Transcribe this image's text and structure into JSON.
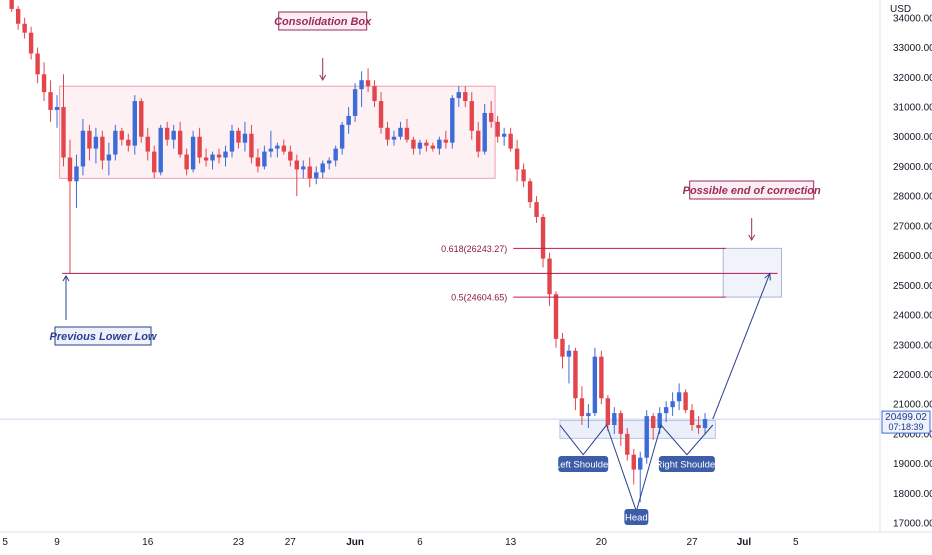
{
  "chart_data": {
    "type": "candlestick",
    "y_axis": {
      "unit": "USD",
      "ticks": [
        "34000.00",
        "33000.00",
        "32000.00",
        "31000.00",
        "30000.00",
        "29000.00",
        "28000.00",
        "27000.00",
        "26000.00",
        "25000.00",
        "24000.00",
        "23000.00",
        "22000.00",
        "21000.00",
        "20000.00",
        "19000.00",
        "18000.00",
        "17000.00"
      ],
      "ylim": [
        16700,
        34600
      ]
    },
    "x_axis": {
      "ticks": [
        {
          "label": "5",
          "day": 5
        },
        {
          "label": "9",
          "day": 9
        },
        {
          "label": "16",
          "day": 16
        },
        {
          "label": "23",
          "day": 23
        },
        {
          "label": "27",
          "day": 27
        },
        {
          "label": "Jun",
          "day": 32
        },
        {
          "label": "6",
          "day": 37
        },
        {
          "label": "13",
          "day": 44
        },
        {
          "label": "20",
          "day": 51
        },
        {
          "label": "27",
          "day": 58
        },
        {
          "label": "Jul",
          "day": 62
        },
        {
          "label": "5",
          "day": 66
        }
      ],
      "xlim": [
        4.6,
        72.5
      ]
    },
    "candles": [
      {
        "t": 5.5,
        "o": 34600,
        "h": 34700,
        "l": 34200,
        "c": 34300
      },
      {
        "t": 6.0,
        "o": 34300,
        "h": 34400,
        "l": 33600,
        "c": 33800
      },
      {
        "t": 6.5,
        "o": 33800,
        "h": 34000,
        "l": 33300,
        "c": 33500
      },
      {
        "t": 7.0,
        "o": 33500,
        "h": 33700,
        "l": 32600,
        "c": 32800
      },
      {
        "t": 7.5,
        "o": 32800,
        "h": 33000,
        "l": 31800,
        "c": 32100
      },
      {
        "t": 8.0,
        "o": 32100,
        "h": 32500,
        "l": 31200,
        "c": 31500
      },
      {
        "t": 8.5,
        "o": 31500,
        "h": 31900,
        "l": 30500,
        "c": 30900
      },
      {
        "t": 9.0,
        "o": 30900,
        "h": 31400,
        "l": 30300,
        "c": 31000
      },
      {
        "t": 9.5,
        "o": 31000,
        "h": 32100,
        "l": 29000,
        "c": 29300
      },
      {
        "t": 10.0,
        "o": 29300,
        "h": 29900,
        "l": 25400,
        "c": 28500
      },
      {
        "t": 10.5,
        "o": 28500,
        "h": 29400,
        "l": 27600,
        "c": 29000
      },
      {
        "t": 11.0,
        "o": 29000,
        "h": 30600,
        "l": 28700,
        "c": 30200
      },
      {
        "t": 11.5,
        "o": 30200,
        "h": 30400,
        "l": 29200,
        "c": 29600
      },
      {
        "t": 12.0,
        "o": 29600,
        "h": 30300,
        "l": 29100,
        "c": 30000
      },
      {
        "t": 12.5,
        "o": 30000,
        "h": 30200,
        "l": 28900,
        "c": 29200
      },
      {
        "t": 13.0,
        "o": 29200,
        "h": 29800,
        "l": 28700,
        "c": 29400
      },
      {
        "t": 13.5,
        "o": 29400,
        "h": 30400,
        "l": 29200,
        "c": 30200
      },
      {
        "t": 14.0,
        "o": 30200,
        "h": 30300,
        "l": 29700,
        "c": 29900
      },
      {
        "t": 14.5,
        "o": 29900,
        "h": 30100,
        "l": 29500,
        "c": 29700
      },
      {
        "t": 15.0,
        "o": 29700,
        "h": 31400,
        "l": 29400,
        "c": 31200
      },
      {
        "t": 15.5,
        "o": 31200,
        "h": 31300,
        "l": 29800,
        "c": 30000
      },
      {
        "t": 16.0,
        "o": 30000,
        "h": 30300,
        "l": 29200,
        "c": 29500
      },
      {
        "t": 16.5,
        "o": 29500,
        "h": 29700,
        "l": 28600,
        "c": 28800
      },
      {
        "t": 17.0,
        "o": 28800,
        "h": 30400,
        "l": 28700,
        "c": 30300
      },
      {
        "t": 17.5,
        "o": 30300,
        "h": 30500,
        "l": 29700,
        "c": 29900
      },
      {
        "t": 18.0,
        "o": 29900,
        "h": 30400,
        "l": 29600,
        "c": 30200
      },
      {
        "t": 18.5,
        "o": 30200,
        "h": 30500,
        "l": 29300,
        "c": 29400
      },
      {
        "t": 19.0,
        "o": 29400,
        "h": 29600,
        "l": 28700,
        "c": 28900
      },
      {
        "t": 19.5,
        "o": 28900,
        "h": 30200,
        "l": 28800,
        "c": 30000
      },
      {
        "t": 20.0,
        "o": 30000,
        "h": 30300,
        "l": 29100,
        "c": 29300
      },
      {
        "t": 20.5,
        "o": 29300,
        "h": 29600,
        "l": 29000,
        "c": 29200
      },
      {
        "t": 21.0,
        "o": 29200,
        "h": 29500,
        "l": 28900,
        "c": 29400
      },
      {
        "t": 21.5,
        "o": 29400,
        "h": 29600,
        "l": 29100,
        "c": 29300
      },
      {
        "t": 22.0,
        "o": 29300,
        "h": 29700,
        "l": 29000,
        "c": 29500
      },
      {
        "t": 22.5,
        "o": 29500,
        "h": 30400,
        "l": 29300,
        "c": 30200
      },
      {
        "t": 23.0,
        "o": 30200,
        "h": 30300,
        "l": 29600,
        "c": 29800
      },
      {
        "t": 23.5,
        "o": 29800,
        "h": 30500,
        "l": 29500,
        "c": 30100
      },
      {
        "t": 24.0,
        "o": 30100,
        "h": 30400,
        "l": 29100,
        "c": 29300
      },
      {
        "t": 24.5,
        "o": 29300,
        "h": 29600,
        "l": 28800,
        "c": 29000
      },
      {
        "t": 25.0,
        "o": 29000,
        "h": 29700,
        "l": 28900,
        "c": 29500
      },
      {
        "t": 25.5,
        "o": 29500,
        "h": 30200,
        "l": 29300,
        "c": 29600
      },
      {
        "t": 26.0,
        "o": 29600,
        "h": 29800,
        "l": 29300,
        "c": 29700
      },
      {
        "t": 26.5,
        "o": 29700,
        "h": 29900,
        "l": 29400,
        "c": 29500
      },
      {
        "t": 27.0,
        "o": 29500,
        "h": 29700,
        "l": 29000,
        "c": 29200
      },
      {
        "t": 27.5,
        "o": 29200,
        "h": 29400,
        "l": 28000,
        "c": 28900
      },
      {
        "t": 28.0,
        "o": 28900,
        "h": 29200,
        "l": 28600,
        "c": 29000
      },
      {
        "t": 28.5,
        "o": 29000,
        "h": 29300,
        "l": 28300,
        "c": 28600
      },
      {
        "t": 29.0,
        "o": 28600,
        "h": 29000,
        "l": 28400,
        "c": 28800
      },
      {
        "t": 29.5,
        "o": 28800,
        "h": 29200,
        "l": 28600,
        "c": 29100
      },
      {
        "t": 30.0,
        "o": 29100,
        "h": 29300,
        "l": 28900,
        "c": 29200
      },
      {
        "t": 30.5,
        "o": 29200,
        "h": 29700,
        "l": 29000,
        "c": 29600
      },
      {
        "t": 31.0,
        "o": 29600,
        "h": 30500,
        "l": 29400,
        "c": 30400
      },
      {
        "t": 31.5,
        "o": 30400,
        "h": 31000,
        "l": 30100,
        "c": 30700
      },
      {
        "t": 32.0,
        "o": 30700,
        "h": 31800,
        "l": 30500,
        "c": 31600
      },
      {
        "t": 32.5,
        "o": 31600,
        "h": 32200,
        "l": 31000,
        "c": 31900
      },
      {
        "t": 33.0,
        "o": 31900,
        "h": 32300,
        "l": 31500,
        "c": 31700
      },
      {
        "t": 33.5,
        "o": 31700,
        "h": 31900,
        "l": 31000,
        "c": 31200
      },
      {
        "t": 34.0,
        "o": 31200,
        "h": 31500,
        "l": 30100,
        "c": 30300
      },
      {
        "t": 34.5,
        "o": 30300,
        "h": 30500,
        "l": 29700,
        "c": 29900
      },
      {
        "t": 35.0,
        "o": 29900,
        "h": 30200,
        "l": 29700,
        "c": 30000
      },
      {
        "t": 35.5,
        "o": 30000,
        "h": 30500,
        "l": 29900,
        "c": 30300
      },
      {
        "t": 36.0,
        "o": 30300,
        "h": 30600,
        "l": 29800,
        "c": 29900
      },
      {
        "t": 36.5,
        "o": 29900,
        "h": 30000,
        "l": 29400,
        "c": 29600
      },
      {
        "t": 37.0,
        "o": 29600,
        "h": 29900,
        "l": 29400,
        "c": 29800
      },
      {
        "t": 37.5,
        "o": 29800,
        "h": 29900,
        "l": 29500,
        "c": 29700
      },
      {
        "t": 38.0,
        "o": 29700,
        "h": 29800,
        "l": 29500,
        "c": 29600
      },
      {
        "t": 38.5,
        "o": 29600,
        "h": 30000,
        "l": 29400,
        "c": 29900
      },
      {
        "t": 39.0,
        "o": 29900,
        "h": 30200,
        "l": 29600,
        "c": 29800
      },
      {
        "t": 39.5,
        "o": 29800,
        "h": 31400,
        "l": 29600,
        "c": 31300
      },
      {
        "t": 40.0,
        "o": 31300,
        "h": 31700,
        "l": 31000,
        "c": 31500
      },
      {
        "t": 40.5,
        "o": 31500,
        "h": 31700,
        "l": 31000,
        "c": 31200
      },
      {
        "t": 41.0,
        "o": 31200,
        "h": 31500,
        "l": 29900,
        "c": 30200
      },
      {
        "t": 41.5,
        "o": 30200,
        "h": 30500,
        "l": 29300,
        "c": 29500
      },
      {
        "t": 42.0,
        "o": 29500,
        "h": 31100,
        "l": 29400,
        "c": 30800
      },
      {
        "t": 42.5,
        "o": 30800,
        "h": 31200,
        "l": 30300,
        "c": 30500
      },
      {
        "t": 43.0,
        "o": 30500,
        "h": 30700,
        "l": 29800,
        "c": 30000
      },
      {
        "t": 43.5,
        "o": 30000,
        "h": 30300,
        "l": 29700,
        "c": 30100
      },
      {
        "t": 44.0,
        "o": 30100,
        "h": 30300,
        "l": 29500,
        "c": 29600
      },
      {
        "t": 44.5,
        "o": 29600,
        "h": 29900,
        "l": 28500,
        "c": 28900
      },
      {
        "t": 45.0,
        "o": 28900,
        "h": 29100,
        "l": 28300,
        "c": 28500
      },
      {
        "t": 45.5,
        "o": 28500,
        "h": 28600,
        "l": 27600,
        "c": 27800
      },
      {
        "t": 46.0,
        "o": 27800,
        "h": 28000,
        "l": 27100,
        "c": 27300
      },
      {
        "t": 46.5,
        "o": 27300,
        "h": 27400,
        "l": 25600,
        "c": 25900
      },
      {
        "t": 47.0,
        "o": 25900,
        "h": 26100,
        "l": 24300,
        "c": 24700
      },
      {
        "t": 47.5,
        "o": 24700,
        "h": 24800,
        "l": 22900,
        "c": 23200
      },
      {
        "t": 48.0,
        "o": 23200,
        "h": 23400,
        "l": 22200,
        "c": 22600
      },
      {
        "t": 48.5,
        "o": 22600,
        "h": 23000,
        "l": 21700,
        "c": 22800
      },
      {
        "t": 49.0,
        "o": 22800,
        "h": 22900,
        "l": 20800,
        "c": 21200
      },
      {
        "t": 49.5,
        "o": 21200,
        "h": 21600,
        "l": 20300,
        "c": 20600
      },
      {
        "t": 50.0,
        "o": 20600,
        "h": 21000,
        "l": 20200,
        "c": 20700
      },
      {
        "t": 50.5,
        "o": 20700,
        "h": 22900,
        "l": 20600,
        "c": 22600
      },
      {
        "t": 51.0,
        "o": 22600,
        "h": 22800,
        "l": 21000,
        "c": 21200
      },
      {
        "t": 51.5,
        "o": 21200,
        "h": 21300,
        "l": 20100,
        "c": 20300
      },
      {
        "t": 52.0,
        "o": 20300,
        "h": 20900,
        "l": 20000,
        "c": 20700
      },
      {
        "t": 52.5,
        "o": 20700,
        "h": 20800,
        "l": 19600,
        "c": 20000
      },
      {
        "t": 53.0,
        "o": 20000,
        "h": 20200,
        "l": 19100,
        "c": 19300
      },
      {
        "t": 53.5,
        "o": 19300,
        "h": 19500,
        "l": 18300,
        "c": 18800
      },
      {
        "t": 54.0,
        "o": 18800,
        "h": 19400,
        "l": 17700,
        "c": 19200
      },
      {
        "t": 54.5,
        "o": 19200,
        "h": 20800,
        "l": 19000,
        "c": 20600
      },
      {
        "t": 55.0,
        "o": 20600,
        "h": 20700,
        "l": 19800,
        "c": 20200
      },
      {
        "t": 55.5,
        "o": 20200,
        "h": 20900,
        "l": 20000,
        "c": 20700
      },
      {
        "t": 56.0,
        "o": 20700,
        "h": 21100,
        "l": 20400,
        "c": 20900
      },
      {
        "t": 56.5,
        "o": 20900,
        "h": 21400,
        "l": 20600,
        "c": 21100
      },
      {
        "t": 57.0,
        "o": 21100,
        "h": 21700,
        "l": 20800,
        "c": 21400
      },
      {
        "t": 57.5,
        "o": 21400,
        "h": 21500,
        "l": 20700,
        "c": 20800
      },
      {
        "t": 58.0,
        "o": 20800,
        "h": 21000,
        "l": 20100,
        "c": 20300
      },
      {
        "t": 58.5,
        "o": 20300,
        "h": 20600,
        "l": 20000,
        "c": 20200
      },
      {
        "t": 59.0,
        "o": 20200,
        "h": 20700,
        "l": 20000,
        "c": 20500
      }
    ],
    "colors": {
      "up": "#3d6bd8",
      "down": "#e2464c",
      "annotation": "#9c2b5a",
      "annotation_blue": "#2a3f8f",
      "current_price": "#3d6bd8"
    },
    "consolidation_box": {
      "x0": 9.2,
      "x1": 42.8,
      "y0": 28600,
      "y1": 31700
    },
    "fib_levels": [
      {
        "label": "0.618(26243.27)",
        "value": 26243.27,
        "x0": 44.2,
        "x1": 60.6
      },
      {
        "label": "0.5(24604.65)",
        "value": 24604.65,
        "x0": 44.2,
        "x1": 60.6
      }
    ],
    "previous_lower_low": {
      "value": 25400,
      "x0": 9.4,
      "x1": 64.6
    },
    "target_zone": {
      "x0": 60.4,
      "x1": 64.9,
      "y0": 24604.65,
      "y1": 26243.27
    },
    "neckline_zone": {
      "x0": 47.8,
      "x1": 59.8,
      "y0": 19850,
      "y1": 20450
    },
    "head_and_shoulders": [
      {
        "x": 47.8,
        "y": 20300
      },
      {
        "x": 49.6,
        "y": 19300
      },
      {
        "x": 51.4,
        "y": 20300
      },
      {
        "x": 53.7,
        "y": 17400
      },
      {
        "x": 55.6,
        "y": 20300
      },
      {
        "x": 57.6,
        "y": 19300
      },
      {
        "x": 59.6,
        "y": 20300
      }
    ],
    "projection_arrow": {
      "from": {
        "t": 59.6,
        "y": 20500
      },
      "to": {
        "t": 64.0,
        "y": 25400
      }
    },
    "current_price": {
      "value": "20499.02",
      "countdown": "07:18:39",
      "level": 20499.02
    },
    "annotations": {
      "consolidation": "Consolidation Box",
      "possible_end": "Possible end of correction",
      "previous_lower_low": "Previous Lower Low",
      "left_shoulder": "Left Shoulder",
      "head": "Head",
      "right_shoulder": "Right Shoulder"
    }
  }
}
